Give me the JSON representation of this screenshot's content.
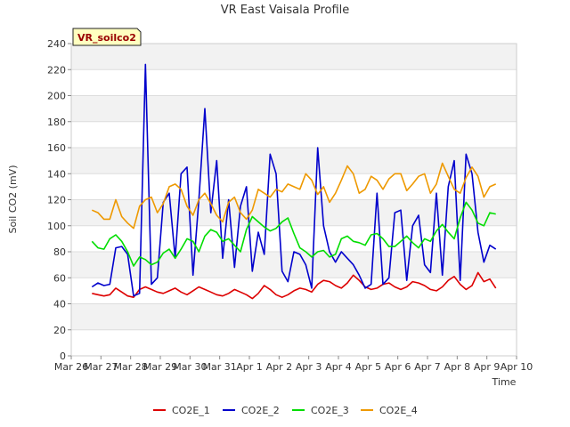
{
  "chart_data": {
    "type": "line",
    "title": "VR East Vaisala Profile",
    "site_label": "VR_soilco2",
    "xlabel": "Time",
    "ylabel": "Soil CO2 (mV)",
    "ylim": [
      0,
      240
    ],
    "yticks": [
      0,
      20,
      40,
      60,
      80,
      100,
      120,
      140,
      160,
      180,
      200,
      220,
      240
    ],
    "xlim": [
      0,
      15
    ],
    "xtick_labels": [
      "Mar 26",
      "Mar 27",
      "Mar 28",
      "Mar 29",
      "Mar 30",
      "Mar 31",
      "Apr 1",
      "Apr 2",
      "Apr 3",
      "Apr 4",
      "Apr 5",
      "Apr 6",
      "Apr 7",
      "Apr 8",
      "Apr 9",
      "Apr 10"
    ],
    "grid": true,
    "legend_position": "bottom",
    "x_days": [
      0.7,
      0.9,
      1.1,
      1.3,
      1.5,
      1.7,
      1.9,
      2.1,
      2.3,
      2.5,
      2.7,
      2.9,
      3.1,
      3.3,
      3.5,
      3.7,
      3.9,
      4.1,
      4.3,
      4.5,
      4.7,
      4.9,
      5.1,
      5.3,
      5.5,
      5.7,
      5.9,
      6.1,
      6.3,
      6.5,
      6.7,
      6.9,
      7.1,
      7.3,
      7.5,
      7.7,
      7.9,
      8.1,
      8.3,
      8.5,
      8.7,
      8.9,
      9.1,
      9.3,
      9.5,
      9.7,
      9.9,
      10.1,
      10.3,
      10.5,
      10.7,
      10.9,
      11.1,
      11.3,
      11.5,
      11.7,
      11.9,
      12.1,
      12.3,
      12.5,
      12.7,
      12.9,
      13.1,
      13.3,
      13.5,
      13.7,
      13.9,
      14.1,
      14.3
    ],
    "series": [
      {
        "name": "CO2E_1",
        "color": "#dd0000",
        "values": [
          48,
          47,
          46,
          47,
          52,
          49,
          46,
          45,
          51,
          53,
          51,
          49,
          48,
          50,
          52,
          49,
          47,
          50,
          53,
          51,
          49,
          47,
          46,
          48,
          51,
          49,
          47,
          44,
          48,
          54,
          51,
          47,
          45,
          47,
          50,
          52,
          51,
          49,
          55,
          58,
          57,
          54,
          52,
          56,
          62,
          58,
          53,
          51,
          52,
          55,
          56,
          53,
          51,
          53,
          57,
          56,
          54,
          51,
          50,
          53,
          58,
          61,
          55,
          51,
          54,
          64,
          57,
          59,
          52
        ]
      },
      {
        "name": "CO2E_2",
        "color": "#0000cc",
        "values": [
          53,
          56,
          54,
          55,
          83,
          84,
          78,
          46,
          48,
          224,
          55,
          60,
          118,
          125,
          75,
          140,
          145,
          62,
          120,
          190,
          110,
          150,
          75,
          120,
          68,
          115,
          130,
          65,
          95,
          78,
          155,
          140,
          65,
          57,
          80,
          78,
          70,
          52,
          160,
          100,
          80,
          72,
          80,
          75,
          70,
          62,
          52,
          55,
          125,
          55,
          60,
          110,
          112,
          58,
          100,
          108,
          70,
          64,
          125,
          62,
          130,
          150,
          58,
          155,
          140,
          95,
          72,
          85,
          82
        ]
      },
      {
        "name": "CO2E_3",
        "color": "#00dd00",
        "values": [
          88,
          83,
          82,
          90,
          93,
          88,
          80,
          69,
          76,
          74,
          70,
          72,
          79,
          82,
          75,
          82,
          90,
          88,
          80,
          92,
          97,
          95,
          88,
          90,
          85,
          80,
          97,
          107,
          103,
          99,
          96,
          98,
          103,
          106,
          94,
          83,
          80,
          76,
          80,
          81,
          76,
          78,
          90,
          92,
          88,
          87,
          85,
          93,
          94,
          90,
          84,
          84,
          88,
          92,
          87,
          83,
          90,
          88,
          96,
          101,
          95,
          90,
          106,
          118,
          112,
          102,
          100,
          110,
          109
        ]
      },
      {
        "name": "CO2E_4",
        "color": "#ee9900",
        "values": [
          112,
          110,
          105,
          105,
          120,
          107,
          102,
          98,
          115,
          120,
          122,
          110,
          117,
          130,
          132,
          128,
          115,
          108,
          120,
          125,
          117,
          108,
          103,
          118,
          122,
          110,
          105,
          112,
          128,
          125,
          122,
          128,
          126,
          132,
          130,
          128,
          140,
          135,
          124,
          130,
          118,
          125,
          135,
          146,
          140,
          125,
          128,
          138,
          135,
          128,
          136,
          140,
          140,
          127,
          132,
          138,
          140,
          125,
          132,
          148,
          138,
          128,
          125,
          137,
          145,
          138,
          122,
          130,
          132
        ]
      }
    ]
  }
}
